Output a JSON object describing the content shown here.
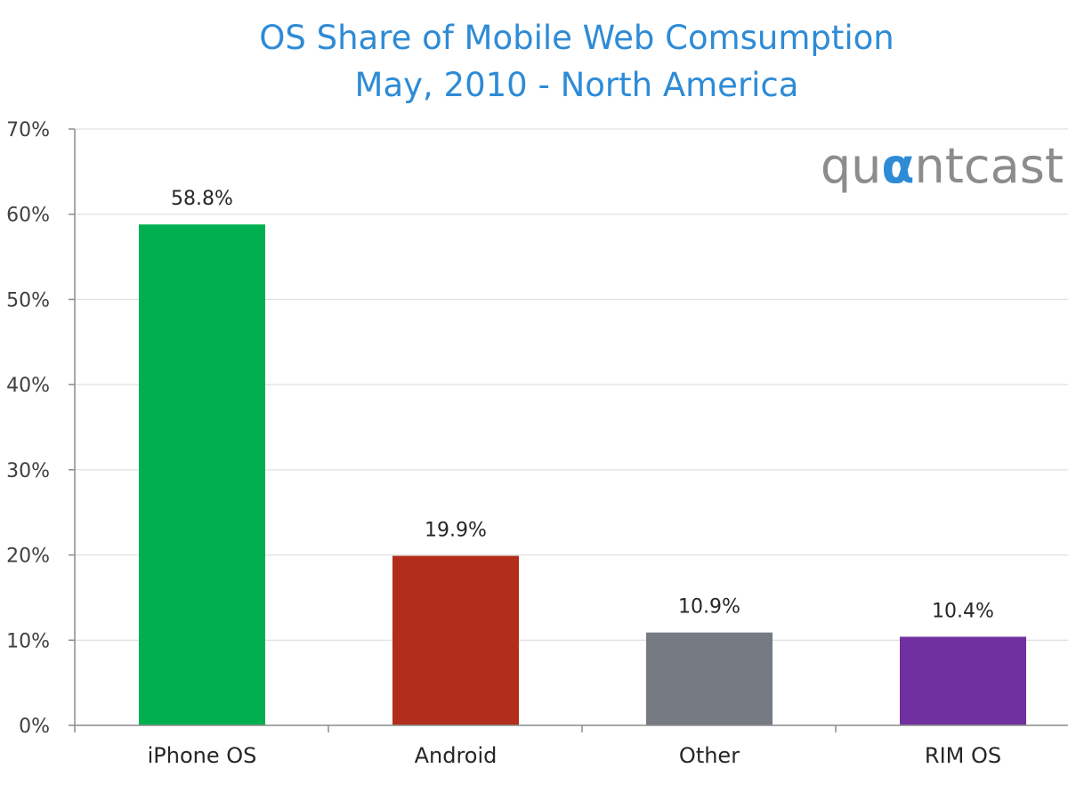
{
  "chart_data": {
    "type": "bar",
    "title": "OS Share of Mobile Web Comsumption",
    "subtitle": "May, 2010 - North America",
    "categories": [
      "iPhone OS",
      "Android",
      "Other",
      "RIM OS"
    ],
    "values": [
      58.8,
      19.9,
      10.9,
      10.4
    ],
    "data_labels": [
      "58.8%",
      "19.9%",
      "10.9%",
      "10.4%"
    ],
    "colors": [
      "#00b050",
      "#b22e1a",
      "#767a82",
      "#7030a0"
    ],
    "ylim": [
      0,
      70
    ],
    "yticks": [
      0,
      10,
      20,
      30,
      40,
      50,
      60,
      70
    ],
    "ytick_labels": [
      "0%",
      "10%",
      "20%",
      "30%",
      "40%",
      "50%",
      "60%",
      "70%"
    ],
    "xlabel": "",
    "ylabel": "",
    "grid": true
  },
  "logo": {
    "before": "qu",
    "accent": "α",
    "after": "ntcast"
  }
}
